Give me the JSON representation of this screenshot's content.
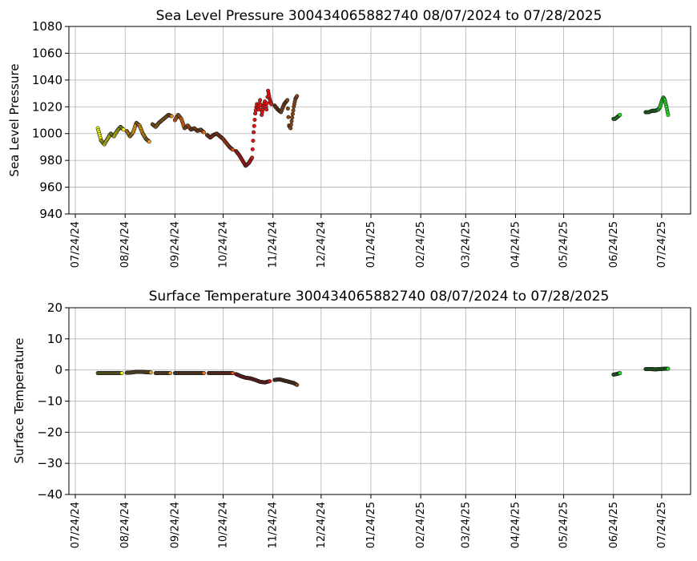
{
  "chart_data": [
    {
      "type": "scatter",
      "title": "Sea Level Pressure 300434065882740  08/07/2024 to 07/28/2025",
      "ylabel": "Sea Level Pressure",
      "xlabel": "",
      "ylim": [
        940,
        1080
      ],
      "yticks": [
        940,
        960,
        980,
        1000,
        1020,
        1040,
        1060,
        1080
      ],
      "xlim": [
        "2024-07-20",
        "2025-08-11"
      ],
      "xticks": [
        {
          "date": "2024-07-24",
          "label": "07/24/24"
        },
        {
          "date": "2024-08-24",
          "label": "08/24/24"
        },
        {
          "date": "2024-09-24",
          "label": "09/24/24"
        },
        {
          "date": "2024-10-24",
          "label": "10/24/24"
        },
        {
          "date": "2024-11-24",
          "label": "11/24/24"
        },
        {
          "date": "2024-12-24",
          "label": "12/24/24"
        },
        {
          "date": "2025-01-24",
          "label": "01/24/25"
        },
        {
          "date": "2025-02-24",
          "label": "02/24/25"
        },
        {
          "date": "2025-03-24",
          "label": "03/24/25"
        },
        {
          "date": "2025-04-24",
          "label": "04/24/25"
        },
        {
          "date": "2025-05-24",
          "label": "05/24/25"
        },
        {
          "date": "2025-06-24",
          "label": "06/24/25"
        },
        {
          "date": "2025-07-24",
          "label": "07/24/25"
        }
      ],
      "grid": true,
      "series": [
        {
          "color": "#ffff00",
          "points": [
            [
              "2024-08-07",
              1004
            ],
            [
              "2024-08-09",
              995
            ],
            [
              "2024-08-11",
              992
            ],
            [
              "2024-08-13",
              996
            ],
            [
              "2024-08-15",
              1000
            ],
            [
              "2024-08-17",
              998
            ],
            [
              "2024-08-19",
              1002
            ],
            [
              "2024-08-21",
              1005
            ],
            [
              "2024-08-23",
              1003
            ]
          ]
        },
        {
          "color": "#ffa500",
          "points": [
            [
              "2024-08-25",
              1002
            ],
            [
              "2024-08-27",
              998
            ],
            [
              "2024-08-29",
              1001
            ],
            [
              "2024-08-31",
              1008
            ],
            [
              "2024-09-02",
              1006
            ],
            [
              "2024-09-04",
              1000
            ],
            [
              "2024-09-06",
              996
            ],
            [
              "2024-09-08",
              994
            ]
          ]
        },
        {
          "color": "#ff8c00",
          "points": [
            [
              "2024-09-10",
              1007
            ],
            [
              "2024-09-12",
              1005
            ],
            [
              "2024-09-14",
              1008
            ],
            [
              "2024-09-16",
              1010
            ],
            [
              "2024-09-18",
              1012
            ],
            [
              "2024-09-20",
              1014
            ],
            [
              "2024-09-22",
              1013
            ]
          ]
        },
        {
          "color": "#ff6a00",
          "points": [
            [
              "2024-09-24",
              1010
            ],
            [
              "2024-09-26",
              1014
            ],
            [
              "2024-09-28",
              1011
            ],
            [
              "2024-09-30",
              1004
            ],
            [
              "2024-10-02",
              1006
            ],
            [
              "2024-10-04",
              1003
            ],
            [
              "2024-10-06",
              1004
            ],
            [
              "2024-10-08",
              1002
            ],
            [
              "2024-10-10",
              1003
            ],
            [
              "2024-10-12",
              1001
            ]
          ]
        },
        {
          "color": "#ff4500",
          "points": [
            [
              "2024-10-14",
              999
            ],
            [
              "2024-10-16",
              997
            ],
            [
              "2024-10-18",
              999
            ],
            [
              "2024-10-20",
              1000
            ],
            [
              "2024-10-22",
              998
            ],
            [
              "2024-10-24",
              996
            ],
            [
              "2024-10-26",
              993
            ],
            [
              "2024-10-28",
              990
            ],
            [
              "2024-10-30",
              988
            ]
          ]
        },
        {
          "color": "#ee1111",
          "points": [
            [
              "2024-11-01",
              987
            ],
            [
              "2024-11-03",
              984
            ],
            [
              "2024-11-05",
              980
            ],
            [
              "2024-11-07",
              976
            ],
            [
              "2024-11-09",
              978
            ],
            [
              "2024-11-11",
              982
            ],
            [
              "2024-11-12",
              1001
            ],
            [
              "2024-11-13",
              1015
            ],
            [
              "2024-11-14",
              1022
            ],
            [
              "2024-11-15",
              1018
            ],
            [
              "2024-11-16",
              1025
            ],
            [
              "2024-11-17",
              1014
            ],
            [
              "2024-11-18",
              1020
            ],
            [
              "2024-11-19",
              1024
            ],
            [
              "2024-11-20",
              1018
            ],
            [
              "2024-11-21",
              1032
            ],
            [
              "2024-11-22",
              1026
            ],
            [
              "2024-11-23",
              1022
            ]
          ]
        },
        {
          "color": "#8b4513",
          "points": [
            [
              "2024-11-25",
              1021
            ],
            [
              "2024-11-27",
              1018
            ],
            [
              "2024-11-29",
              1016
            ],
            [
              "2024-12-01",
              1022
            ],
            [
              "2024-12-03",
              1025
            ],
            [
              "2024-12-04",
              1006
            ],
            [
              "2024-12-05",
              1004
            ],
            [
              "2024-12-06",
              1012
            ],
            [
              "2024-12-07",
              1020
            ],
            [
              "2024-12-08",
              1026
            ],
            [
              "2024-12-09",
              1028
            ]
          ]
        },
        {
          "color": "#22dd22",
          "points": [
            [
              "2025-06-24",
              1011
            ],
            [
              "2025-06-25",
              1011
            ],
            [
              "2025-06-26",
              1012
            ],
            [
              "2025-06-27",
              1013
            ],
            [
              "2025-06-28",
              1014
            ],
            [
              "2025-07-14",
              1016
            ],
            [
              "2025-07-16",
              1016
            ],
            [
              "2025-07-18",
              1017
            ],
            [
              "2025-07-20",
              1017
            ],
            [
              "2025-07-22",
              1018
            ],
            [
              "2025-07-23",
              1020
            ],
            [
              "2025-07-24",
              1024
            ],
            [
              "2025-07-25",
              1027
            ],
            [
              "2025-07-26",
              1025
            ],
            [
              "2025-07-27",
              1020
            ],
            [
              "2025-07-28",
              1014
            ]
          ]
        }
      ]
    },
    {
      "type": "scatter",
      "title": "Surface Temperature 300434065882740  08/07/2024 to 07/28/2025",
      "ylabel": "Surface Temperature",
      "xlabel": "",
      "ylim": [
        -40,
        20
      ],
      "yticks": [
        -40,
        -30,
        -20,
        -10,
        0,
        10,
        20
      ],
      "ytick_labels": [
        "−40",
        "−30",
        "−20",
        "−10",
        "0",
        "10",
        "20"
      ],
      "xlim": [
        "2024-07-20",
        "2025-08-11"
      ],
      "xticks": [
        {
          "date": "2024-07-24",
          "label": "07/24/24"
        },
        {
          "date": "2024-08-24",
          "label": "08/24/24"
        },
        {
          "date": "2024-09-24",
          "label": "09/24/24"
        },
        {
          "date": "2024-10-24",
          "label": "10/24/24"
        },
        {
          "date": "2024-11-24",
          "label": "11/24/24"
        },
        {
          "date": "2024-12-24",
          "label": "12/24/24"
        },
        {
          "date": "2025-01-24",
          "label": "01/24/25"
        },
        {
          "date": "2025-02-24",
          "label": "02/24/25"
        },
        {
          "date": "2025-03-24",
          "label": "03/24/25"
        },
        {
          "date": "2025-04-24",
          "label": "04/24/25"
        },
        {
          "date": "2025-05-24",
          "label": "05/24/25"
        },
        {
          "date": "2025-06-24",
          "label": "06/24/25"
        },
        {
          "date": "2025-07-24",
          "label": "07/24/25"
        }
      ],
      "grid": true,
      "series": [
        {
          "color": "#ffff00",
          "points": [
            [
              "2024-08-07",
              -1.0
            ],
            [
              "2024-08-10",
              -1.0
            ],
            [
              "2024-08-13",
              -1.0
            ],
            [
              "2024-08-16",
              -1.0
            ],
            [
              "2024-08-19",
              -1.0
            ],
            [
              "2024-08-22",
              -1.0
            ]
          ]
        },
        {
          "color": "#ffa500",
          "points": [
            [
              "2024-08-25",
              -0.9
            ],
            [
              "2024-08-28",
              -0.8
            ],
            [
              "2024-08-31",
              -0.6
            ],
            [
              "2024-09-03",
              -0.6
            ],
            [
              "2024-09-06",
              -0.7
            ],
            [
              "2024-09-09",
              -0.8
            ]
          ]
        },
        {
          "color": "#ff8c00",
          "points": [
            [
              "2024-09-12",
              -1.0
            ],
            [
              "2024-09-15",
              -1.0
            ],
            [
              "2024-09-18",
              -1.0
            ],
            [
              "2024-09-21",
              -1.0
            ]
          ]
        },
        {
          "color": "#ff6a00",
          "points": [
            [
              "2024-09-24",
              -1.0
            ],
            [
              "2024-09-27",
              -1.0
            ],
            [
              "2024-09-30",
              -1.0
            ],
            [
              "2024-10-03",
              -1.0
            ],
            [
              "2024-10-06",
              -1.0
            ],
            [
              "2024-10-09",
              -1.0
            ],
            [
              "2024-10-12",
              -1.0
            ]
          ]
        },
        {
          "color": "#ff4500",
          "points": [
            [
              "2024-10-15",
              -1.0
            ],
            [
              "2024-10-18",
              -1.0
            ],
            [
              "2024-10-21",
              -1.0
            ],
            [
              "2024-10-24",
              -1.0
            ],
            [
              "2024-10-27",
              -1.0
            ],
            [
              "2024-10-30",
              -1.0
            ]
          ]
        },
        {
          "color": "#ee1111",
          "points": [
            [
              "2024-11-01",
              -1.3
            ],
            [
              "2024-11-04",
              -2.0
            ],
            [
              "2024-11-07",
              -2.5
            ],
            [
              "2024-11-10",
              -2.7
            ],
            [
              "2024-11-13",
              -3.2
            ],
            [
              "2024-11-16",
              -3.8
            ],
            [
              "2024-11-19",
              -4.0
            ],
            [
              "2024-11-22",
              -3.6
            ]
          ]
        },
        {
          "color": "#8b4513",
          "points": [
            [
              "2024-11-25",
              -3.2
            ],
            [
              "2024-11-28",
              -3.0
            ],
            [
              "2024-12-01",
              -3.4
            ],
            [
              "2024-12-04",
              -3.8
            ],
            [
              "2024-12-07",
              -4.2
            ],
            [
              "2024-12-09",
              -4.8
            ]
          ]
        },
        {
          "color": "#22dd22",
          "points": [
            [
              "2025-06-24",
              -1.5
            ],
            [
              "2025-06-26",
              -1.3
            ],
            [
              "2025-06-28",
              -1.0
            ],
            [
              "2025-07-14",
              0.3
            ],
            [
              "2025-07-17",
              0.3
            ],
            [
              "2025-07-20",
              0.2
            ],
            [
              "2025-07-23",
              0.3
            ],
            [
              "2025-07-26",
              0.4
            ],
            [
              "2025-07-28",
              0.4
            ]
          ]
        }
      ]
    }
  ]
}
